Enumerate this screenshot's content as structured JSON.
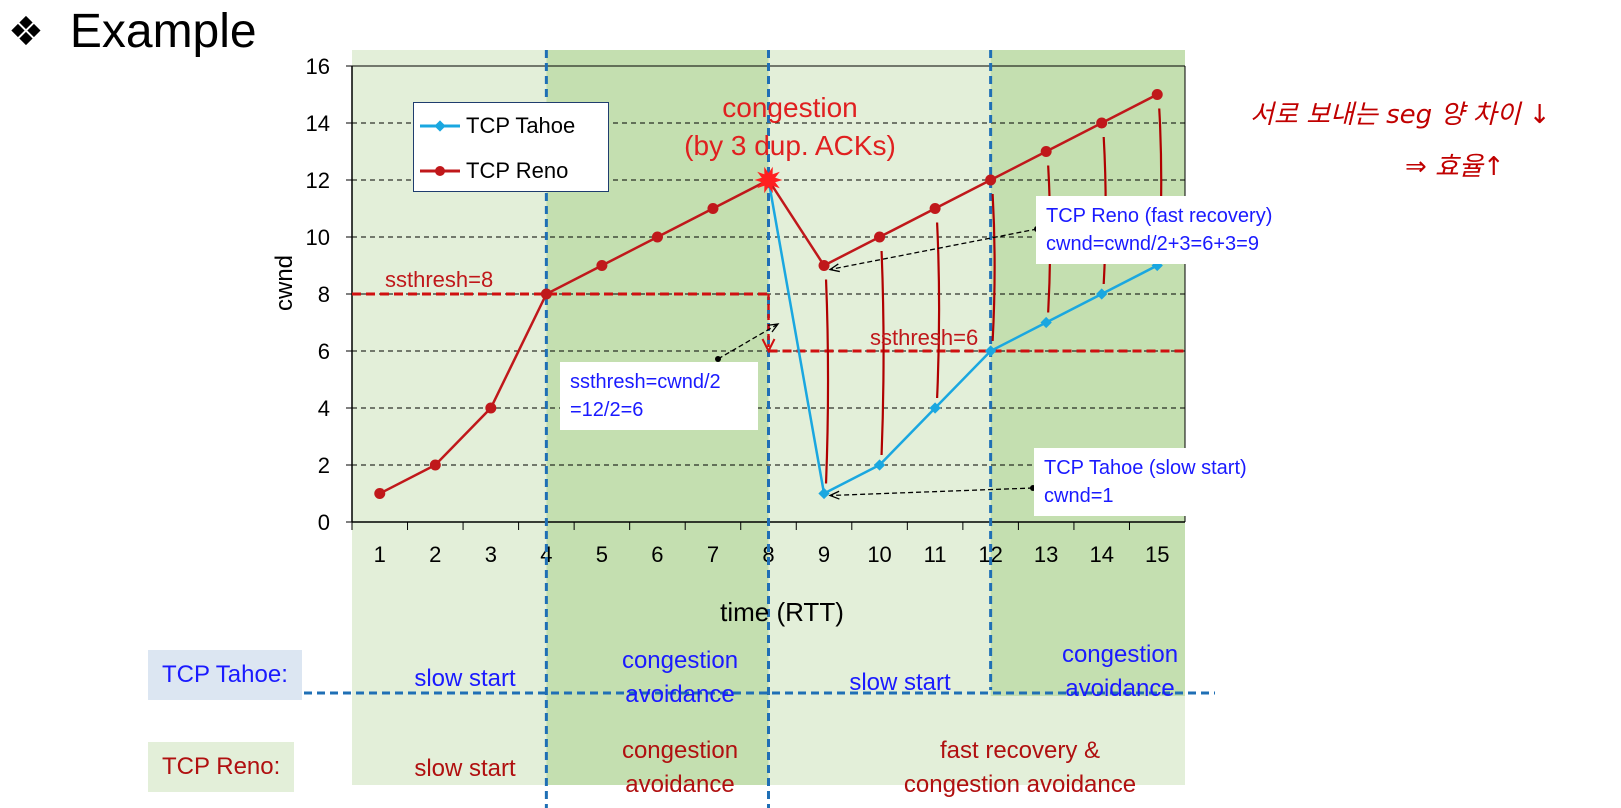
{
  "header": {
    "title": "Example",
    "bullet_icon": "diamond-cluster-icon"
  },
  "chart_data": {
    "type": "line",
    "xlabel": "time (RTT)",
    "ylabel": "cwnd",
    "xlim": [
      0.5,
      15.5
    ],
    "ylim": [
      0,
      16
    ],
    "y_ticks": [
      0,
      2,
      4,
      6,
      8,
      10,
      12,
      14,
      16
    ],
    "x_ticks": [
      1,
      2,
      3,
      4,
      5,
      6,
      7,
      8,
      9,
      10,
      11,
      12,
      13,
      14,
      15
    ],
    "grid": "horizontal-dashed",
    "legend_position": "top-left",
    "series": [
      {
        "name": "TCP Tahoe",
        "color": "#1aa7e0",
        "marker": "diamond",
        "x": [
          8,
          9,
          10,
          11,
          12,
          13,
          14,
          15
        ],
        "values": [
          12,
          1,
          2,
          4,
          6,
          7,
          8,
          9
        ]
      },
      {
        "name": "TCP Reno",
        "color": "#c0181b",
        "marker": "circle",
        "x": [
          1,
          2,
          3,
          4,
          5,
          6,
          7,
          8,
          9,
          10,
          11,
          12,
          13,
          14,
          15
        ],
        "values": [
          1,
          2,
          4,
          8,
          9,
          10,
          11,
          12,
          9,
          10,
          11,
          12,
          13,
          14,
          15
        ]
      }
    ],
    "thresholds": [
      {
        "label": "ssthresh=8",
        "value": 8,
        "from_x": 0.5,
        "to_x": 8
      },
      {
        "label": "ssthresh=6",
        "value": 6,
        "from_x": 8,
        "to_x": 15.5
      }
    ],
    "phase_boundaries_x": [
      4,
      8,
      12
    ],
    "annotations": {
      "congestion_line1": "congestion",
      "congestion_line2": "(by 3 dup. ACKs)",
      "ssthresh_calc_line1": "ssthresh=cwnd/2",
      "ssthresh_calc_line2": "=12/2=6",
      "reno_recovery_line1": "TCP Reno (fast recovery)",
      "reno_recovery_line2": "cwnd=cwnd/2+3=6+3=9",
      "tahoe_slow_line1": "TCP Tahoe (slow start)",
      "tahoe_slow_line2": "cwnd=1"
    }
  },
  "phases": {
    "tahoe_label": "TCP Tahoe:",
    "reno_label": "TCP Reno:",
    "tahoe": [
      {
        "line1": "slow start",
        "line2": ""
      },
      {
        "line1": "congestion",
        "line2": "avoidance"
      },
      {
        "line1": "slow start",
        "line2": ""
      },
      {
        "line1": "congestion",
        "line2": "avoidance"
      }
    ],
    "reno": [
      {
        "line1": "slow start",
        "line2": ""
      },
      {
        "line1": "congestion",
        "line2": "avoidance"
      },
      {
        "line1": "fast recovery &",
        "line2": "congestion avoidance"
      }
    ]
  },
  "handwritten": {
    "line1": "서로 보내는 seg 양 차이 ↓",
    "line2": "⇒ 효율↑"
  },
  "colors": {
    "band_light": "#e3efd9",
    "band_dark": "#c4dfb0",
    "blue_text": "#1a1aff",
    "red_text": "#b01010",
    "tahoe": "#1aa7e0",
    "reno": "#c0181b",
    "divider": "#1f6fb5"
  }
}
